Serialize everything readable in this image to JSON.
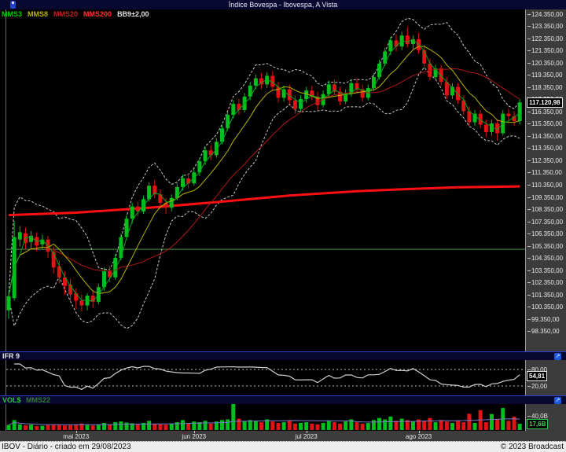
{
  "title_bar": {
    "title": "Índice Bovespa - Ibovespa, A Vista"
  },
  "legend": {
    "items": [
      {
        "label": "MMS3",
        "color": "#00cc00"
      },
      {
        "label": "MMS8",
        "color": "#b8b400"
      },
      {
        "label": "MMS20",
        "color": "#c22222"
      },
      {
        "label": "MMS200",
        "color": "#ff3333"
      },
      {
        "label": "BB9±2,00",
        "color": "#e0e0e0"
      }
    ]
  },
  "main_axis": {
    "top_value": 124350,
    "bottom_value": 98350,
    "step": 1000,
    "labels": [
      "124.350,00",
      "123.350,00",
      "122.350,00",
      "121.350,00",
      "120.350,00",
      "119.350,00",
      "118.350,00",
      "117.350,00",
      "116.350,00",
      "115.350,00",
      "114.350,00",
      "113.350,00",
      "112.350,00",
      "111.350,00",
      "110.350,00",
      "109.350,00",
      "108.350,00",
      "107.350,00",
      "106.350,00",
      "105.350,00",
      "104.350,00",
      "103.350,00",
      "102.350,00",
      "101.350,00",
      "100.350,00",
      "99.350,00",
      "98.350,00"
    ]
  },
  "price_box": {
    "label": "117.120,98",
    "value": 117120.98
  },
  "ifr_panel": {
    "title": "IFR 9",
    "levels": [
      {
        "label": "80,00",
        "value": 80
      },
      {
        "label": "20,00",
        "value": 20
      }
    ],
    "value_box": {
      "label": "54,81",
      "value": 54.81
    }
  },
  "vol_panel": {
    "title": "VOL$",
    "subtitle": "MMS22",
    "axis_label": {
      "label": "40,0B",
      "value": 40
    },
    "value_box": {
      "label": "17,6B",
      "value": 17.6
    }
  },
  "x_axis": {
    "months": [
      {
        "label": "mai 2023",
        "index": 12
      },
      {
        "label": "jun 2023",
        "index": 33
      },
      {
        "label": "jul 2023",
        "index": 53
      },
      {
        "label": "ago 2023",
        "index": 73
      }
    ]
  },
  "status_bar": {
    "left": "IBOV - Diário - criado em 29/08/2023",
    "right": "© 2023 Broadcast"
  },
  "colors": {
    "background": "#000000",
    "header_navy": "#08082e",
    "axis_bg": "#3c3c3c",
    "candle_up": "#00c020",
    "candle_down": "#e01414",
    "mms3": "#00a81e",
    "mms8": "#b8b400",
    "mms20": "#b01818",
    "mms200": "#ff1010",
    "bollinger": "#c8c8c8",
    "ifr_line": "#cfcfcf",
    "vol_ma": "#7a7ac8",
    "hline_green": "#4f8f4f",
    "status_bg": "#ededed",
    "icon_blue": "#1e5adf"
  },
  "chart_data": [
    {
      "type": "candlestick",
      "title": "Índice Bovespa - Ibovespa, A Vista",
      "timeframe": "Diário",
      "ylim": [
        98350,
        124350
      ],
      "y_tick_step": 1000,
      "last_price": 117120.98,
      "horizontal_line": 105100,
      "overlays": [
        "MMS3",
        "MMS8",
        "MMS20",
        "MMS200",
        "BB9±2,00"
      ],
      "mms200_points": [
        [
          0,
          107900
        ],
        [
          12,
          108100
        ],
        [
          25,
          108500
        ],
        [
          38,
          109000
        ],
        [
          50,
          109500
        ],
        [
          62,
          109850
        ],
        [
          72,
          110050
        ],
        [
          80,
          110180
        ],
        [
          91,
          110250
        ]
      ],
      "month_ticks": [
        [
          12,
          "mai 2023"
        ],
        [
          33,
          "jun 2023"
        ],
        [
          53,
          "jul 2023"
        ],
        [
          73,
          "ago 2023"
        ]
      ],
      "ohlc": [
        [
          100100,
          101600,
          99400,
          101250
        ],
        [
          101100,
          107400,
          100900,
          106100
        ],
        [
          105900,
          107000,
          105300,
          106500
        ],
        [
          106400,
          106900,
          105100,
          105600
        ],
        [
          105700,
          106600,
          105100,
          106200
        ],
        [
          106100,
          106500,
          104900,
          105400
        ],
        [
          105500,
          106300,
          105100,
          105900
        ],
        [
          105900,
          106200,
          104400,
          104900
        ],
        [
          104900,
          105300,
          103100,
          103600
        ],
        [
          103700,
          104200,
          102300,
          102800
        ],
        [
          102800,
          103300,
          101400,
          102100
        ],
        [
          102200,
          102700,
          100800,
          101400
        ],
        [
          101500,
          101900,
          100200,
          100900
        ],
        [
          100900,
          101400,
          100000,
          100500
        ],
        [
          100500,
          101500,
          100100,
          101300
        ],
        [
          101300,
          101700,
          100300,
          100800
        ],
        [
          100800,
          102300,
          100600,
          102000
        ],
        [
          102000,
          103600,
          101700,
          103300
        ],
        [
          103300,
          103700,
          102400,
          102800
        ],
        [
          102800,
          104700,
          102600,
          104400
        ],
        [
          104400,
          106400,
          104200,
          106100
        ],
        [
          106100,
          107900,
          105900,
          107600
        ],
        [
          107600,
          108900,
          107200,
          108600
        ],
        [
          108600,
          109000,
          107800,
          108200
        ],
        [
          108200,
          109500,
          108000,
          109200
        ],
        [
          109200,
          110600,
          109000,
          110300
        ],
        [
          110300,
          110800,
          109300,
          109600
        ],
        [
          109600,
          110000,
          108500,
          108900
        ],
        [
          108900,
          109300,
          108000,
          108500
        ],
        [
          108500,
          109600,
          108200,
          109300
        ],
        [
          109300,
          110500,
          109100,
          110200
        ],
        [
          110200,
          111200,
          109900,
          110900
        ],
        [
          110900,
          111300,
          110100,
          110500
        ],
        [
          110500,
          111700,
          110300,
          111400
        ],
        [
          111400,
          112600,
          111100,
          112300
        ],
        [
          112300,
          113500,
          112000,
          113200
        ],
        [
          113200,
          113600,
          112400,
          112800
        ],
        [
          112800,
          114200,
          112600,
          113900
        ],
        [
          113900,
          115300,
          113700,
          115000
        ],
        [
          115000,
          116400,
          114800,
          116100
        ],
        [
          116100,
          117300,
          115800,
          117000
        ],
        [
          117000,
          117400,
          116100,
          116500
        ],
        [
          116500,
          117900,
          116300,
          117600
        ],
        [
          117600,
          118800,
          117300,
          118500
        ],
        [
          118500,
          119400,
          118200,
          119100
        ],
        [
          119100,
          119500,
          118200,
          118600
        ],
        [
          118600,
          119600,
          118300,
          119300
        ],
        [
          119300,
          119700,
          118100,
          118400
        ],
        [
          118400,
          118800,
          117100,
          117500
        ],
        [
          117500,
          118500,
          117200,
          118200
        ],
        [
          118200,
          118600,
          117000,
          117300
        ],
        [
          117300,
          117700,
          116200,
          116600
        ],
        [
          116600,
          117700,
          116300,
          117400
        ],
        [
          117400,
          118400,
          117100,
          118100
        ],
        [
          118100,
          118500,
          117300,
          117600
        ],
        [
          117600,
          118000,
          116500,
          116900
        ],
        [
          116900,
          118100,
          116700,
          117800
        ],
        [
          117800,
          118900,
          117500,
          118600
        ],
        [
          118600,
          119000,
          117700,
          118000
        ],
        [
          118000,
          118400,
          116900,
          117200
        ],
        [
          117200,
          118200,
          117000,
          117900
        ],
        [
          117900,
          119000,
          117600,
          118700
        ],
        [
          118700,
          119100,
          117900,
          118200
        ],
        [
          118200,
          118600,
          117200,
          117500
        ],
        [
          117500,
          118600,
          117300,
          118300
        ],
        [
          118300,
          119500,
          118100,
          119200
        ],
        [
          119200,
          120600,
          119000,
          120300
        ],
        [
          120300,
          121600,
          120100,
          121300
        ],
        [
          121300,
          122500,
          121000,
          122200
        ],
        [
          122200,
          122700,
          121300,
          121700
        ],
        [
          121700,
          122900,
          121400,
          122600
        ],
        [
          122600,
          123300,
          121600,
          121900
        ],
        [
          121900,
          122600,
          121500,
          122300
        ],
        [
          122300,
          122800,
          121100,
          121400
        ],
        [
          121400,
          121800,
          120000,
          120300
        ],
        [
          120300,
          120700,
          118900,
          119200
        ],
        [
          119200,
          120200,
          119000,
          119900
        ],
        [
          119900,
          120200,
          118500,
          118800
        ],
        [
          118800,
          119200,
          117400,
          117700
        ],
        [
          117700,
          118700,
          117400,
          118400
        ],
        [
          118400,
          118700,
          117000,
          117300
        ],
        [
          117300,
          117700,
          116100,
          116400
        ],
        [
          116400,
          116800,
          115200,
          115500
        ],
        [
          115500,
          116500,
          115200,
          116200
        ],
        [
          116200,
          116500,
          115000,
          115300
        ],
        [
          115300,
          115700,
          114300,
          114700
        ],
        [
          114700,
          115700,
          114400,
          115400
        ],
        [
          115400,
          115700,
          114000,
          114600
        ],
        [
          114600,
          116500,
          114400,
          116200
        ],
        [
          116200,
          116600,
          115600,
          116000
        ],
        [
          116000,
          116400,
          115200,
          115600
        ],
        [
          115600,
          117400,
          115300,
          117121
        ]
      ]
    },
    {
      "type": "line",
      "title": "IFR 9",
      "ylim": [
        0,
        100
      ],
      "reference_levels": [
        80,
        20
      ],
      "last_value": 54.81,
      "derived_from": "RSI(9) of daily closes"
    },
    {
      "type": "bar",
      "title": "VOL$",
      "ma_label": "MMS22",
      "ma_window": 22,
      "unit": "B",
      "y_tick": 40.0,
      "last_value": 17.6,
      "values": [
        14,
        28,
        16,
        13,
        15,
        11,
        12,
        14,
        16,
        15,
        13,
        14,
        15,
        18,
        14,
        13,
        16,
        20,
        15,
        22,
        24,
        21,
        19,
        17,
        20,
        26,
        18,
        16,
        15,
        17,
        22,
        28,
        20,
        24,
        22,
        26,
        18,
        24,
        28,
        30,
        75,
        32,
        25,
        28,
        26,
        22,
        30,
        24,
        20,
        22,
        26,
        18,
        20,
        22,
        18,
        16,
        20,
        26,
        22,
        18,
        24,
        30,
        22,
        18,
        20,
        28,
        34,
        30,
        38,
        26,
        32,
        28,
        24,
        30,
        26,
        34,
        22,
        28,
        24,
        20,
        26,
        22,
        46,
        20,
        56,
        22,
        45,
        30,
        62,
        26,
        38,
        17.6
      ]
    }
  ]
}
